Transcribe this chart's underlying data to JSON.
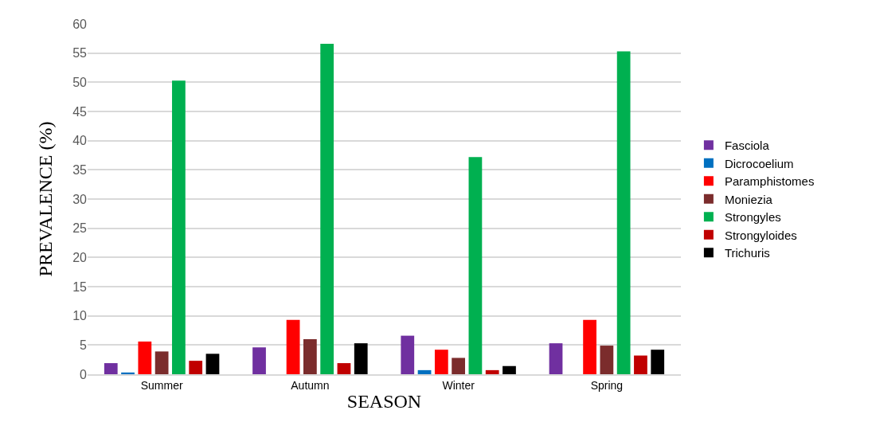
{
  "chart_data": {
    "type": "bar",
    "xlabel": "SEASON",
    "ylabel": "PREVALENCE (%)",
    "categories": [
      "Summer",
      "Autumn",
      "Winter",
      "Spring"
    ],
    "series": [
      {
        "name": "Fasciola",
        "color": "#7030a0",
        "values": [
          1.9,
          4.6,
          6.6,
          5.3
        ]
      },
      {
        "name": "Dicrocoelium",
        "color": "#0070c0",
        "values": [
          0.3,
          0,
          0.7,
          0
        ]
      },
      {
        "name": "Paramphistomes",
        "color": "#ff0000",
        "values": [
          5.6,
          9.3,
          4.2,
          9.3
        ]
      },
      {
        "name": "Moniezia",
        "color": "#7b2c2c",
        "values": [
          3.9,
          6.0,
          2.8,
          4.9
        ]
      },
      {
        "name": "Strongyles",
        "color": "#00b050",
        "values": [
          50.3,
          56.6,
          37.2,
          55.3
        ]
      },
      {
        "name": "Strongyloides",
        "color": "#c00000",
        "values": [
          2.3,
          1.9,
          0.7,
          3.2
        ]
      },
      {
        "name": "Trichuris",
        "color": "#000000",
        "values": [
          3.5,
          5.3,
          1.4,
          4.2
        ]
      }
    ],
    "ylim": [
      0,
      60
    ],
    "yticks": [
      0,
      5,
      10,
      15,
      20,
      25,
      30,
      35,
      40,
      45,
      50,
      55,
      60
    ],
    "grid": "y",
    "legend": "right"
  }
}
